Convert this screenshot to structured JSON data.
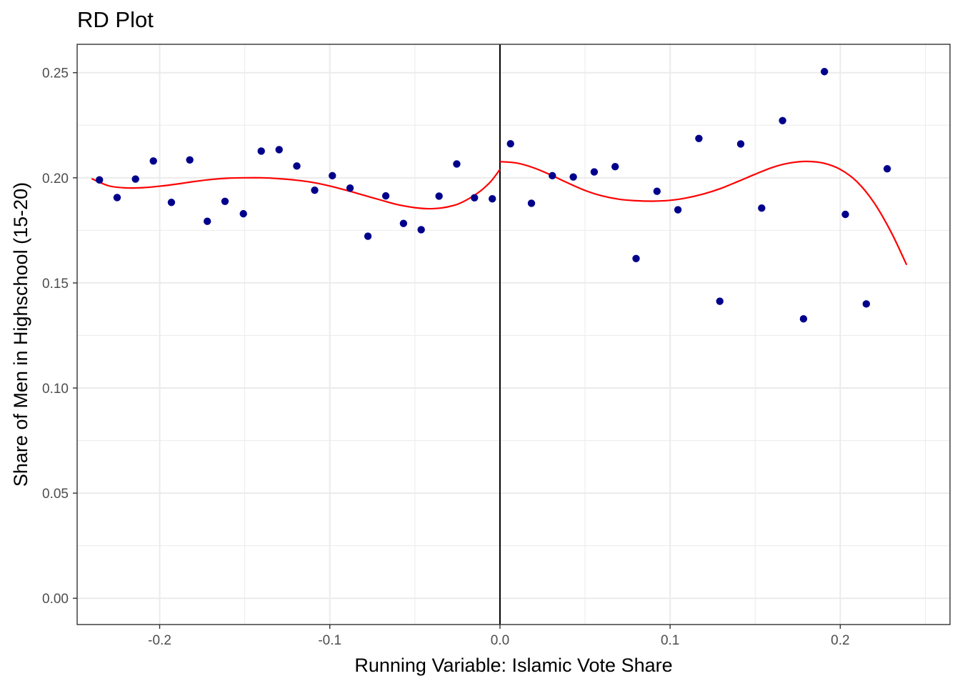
{
  "chart_data": {
    "type": "scatter",
    "title": "RD Plot",
    "xlabel": "Running Variable: Islamic Vote Share",
    "ylabel": "Share of Men in Highschool (15-20)",
    "xlim": [
      -0.2485,
      0.2645
    ],
    "ylim": [
      -0.0125,
      0.2635
    ],
    "xticks": [
      -0.2,
      -0.1,
      0.0,
      0.1,
      0.2
    ],
    "xtick_labels": [
      "-0.2",
      "-0.1",
      "0.0",
      "0.1",
      "0.2"
    ],
    "yticks": [
      0.0,
      0.05,
      0.1,
      0.15,
      0.2,
      0.25
    ],
    "ytick_labels": [
      "0.00",
      "0.05",
      "0.10",
      "0.15",
      "0.20",
      "0.25"
    ],
    "grid": true,
    "cutoff": 0.0,
    "colors": {
      "points": "#00008B",
      "fit": "#FF0000",
      "cutoff": "#000000",
      "grid": "#EBEBEB"
    },
    "points": [
      {
        "x": -0.2354,
        "y": 0.199
      },
      {
        "x": -0.225,
        "y": 0.1906
      },
      {
        "x": -0.2142,
        "y": 0.1994
      },
      {
        "x": -0.2037,
        "y": 0.208
      },
      {
        "x": -0.1931,
        "y": 0.1883
      },
      {
        "x": -0.1823,
        "y": 0.2085
      },
      {
        "x": -0.172,
        "y": 0.1793
      },
      {
        "x": -0.1616,
        "y": 0.1888
      },
      {
        "x": -0.1508,
        "y": 0.1829
      },
      {
        "x": -0.1403,
        "y": 0.2127
      },
      {
        "x": -0.1298,
        "y": 0.2134
      },
      {
        "x": -0.1194,
        "y": 0.2056
      },
      {
        "x": -0.1089,
        "y": 0.1941
      },
      {
        "x": -0.0985,
        "y": 0.201
      },
      {
        "x": -0.0881,
        "y": 0.1951
      },
      {
        "x": -0.0776,
        "y": 0.1722
      },
      {
        "x": -0.0671,
        "y": 0.1914
      },
      {
        "x": -0.0567,
        "y": 0.1783
      },
      {
        "x": -0.0463,
        "y": 0.1753
      },
      {
        "x": -0.0358,
        "y": 0.1913
      },
      {
        "x": -0.0254,
        "y": 0.2066
      },
      {
        "x": -0.015,
        "y": 0.1905
      },
      {
        "x": -0.0045,
        "y": 0.19
      },
      {
        "x": 0.0062,
        "y": 0.2162
      },
      {
        "x": 0.0185,
        "y": 0.1879
      },
      {
        "x": 0.0308,
        "y": 0.201
      },
      {
        "x": 0.0431,
        "y": 0.2004
      },
      {
        "x": 0.0554,
        "y": 0.2028
      },
      {
        "x": 0.0677,
        "y": 0.2053
      },
      {
        "x": 0.08,
        "y": 0.1616
      },
      {
        "x": 0.0923,
        "y": 0.1936
      },
      {
        "x": 0.1046,
        "y": 0.1848
      },
      {
        "x": 0.1169,
        "y": 0.2187
      },
      {
        "x": 0.1292,
        "y": 0.1413
      },
      {
        "x": 0.1415,
        "y": 0.2161
      },
      {
        "x": 0.1538,
        "y": 0.1856
      },
      {
        "x": 0.1661,
        "y": 0.2272
      },
      {
        "x": 0.1784,
        "y": 0.1329
      },
      {
        "x": 0.1907,
        "y": 0.2505
      },
      {
        "x": 0.203,
        "y": 0.1826
      },
      {
        "x": 0.2153,
        "y": 0.14
      },
      {
        "x": 0.2276,
        "y": 0.2043
      }
    ],
    "fit_left": [
      {
        "x": -0.24,
        "y": 0.1996
      },
      {
        "x": -0.23,
        "y": 0.1962
      },
      {
        "x": -0.22,
        "y": 0.1952
      },
      {
        "x": -0.21,
        "y": 0.1953
      },
      {
        "x": -0.2,
        "y": 0.196
      },
      {
        "x": -0.19,
        "y": 0.197
      },
      {
        "x": -0.18,
        "y": 0.1982
      },
      {
        "x": -0.17,
        "y": 0.1992
      },
      {
        "x": -0.16,
        "y": 0.1998
      },
      {
        "x": -0.15,
        "y": 0.2
      },
      {
        "x": -0.14,
        "y": 0.2
      },
      {
        "x": -0.13,
        "y": 0.1996
      },
      {
        "x": -0.12,
        "y": 0.1989
      },
      {
        "x": -0.11,
        "y": 0.1978
      },
      {
        "x": -0.1,
        "y": 0.1961
      },
      {
        "x": -0.09,
        "y": 0.194
      },
      {
        "x": -0.08,
        "y": 0.1917
      },
      {
        "x": -0.07,
        "y": 0.1894
      },
      {
        "x": -0.06,
        "y": 0.1872
      },
      {
        "x": -0.05,
        "y": 0.1858
      },
      {
        "x": -0.042,
        "y": 0.1853
      },
      {
        "x": -0.035,
        "y": 0.1856
      },
      {
        "x": -0.03,
        "y": 0.1863
      },
      {
        "x": -0.025,
        "y": 0.1874
      },
      {
        "x": -0.02,
        "y": 0.1893
      },
      {
        "x": -0.015,
        "y": 0.1917
      },
      {
        "x": -0.01,
        "y": 0.1947
      },
      {
        "x": -0.005,
        "y": 0.1986
      },
      {
        "x": 0.0,
        "y": 0.204
      }
    ],
    "fit_right": [
      {
        "x": 0.0,
        "y": 0.2077
      },
      {
        "x": 0.01,
        "y": 0.207
      },
      {
        "x": 0.02,
        "y": 0.2047
      },
      {
        "x": 0.03,
        "y": 0.2013
      },
      {
        "x": 0.04,
        "y": 0.1975
      },
      {
        "x": 0.05,
        "y": 0.194
      },
      {
        "x": 0.06,
        "y": 0.1914
      },
      {
        "x": 0.07,
        "y": 0.1898
      },
      {
        "x": 0.08,
        "y": 0.1891
      },
      {
        "x": 0.09,
        "y": 0.1889
      },
      {
        "x": 0.1,
        "y": 0.1893
      },
      {
        "x": 0.11,
        "y": 0.1905
      },
      {
        "x": 0.12,
        "y": 0.1924
      },
      {
        "x": 0.13,
        "y": 0.195
      },
      {
        "x": 0.14,
        "y": 0.1983
      },
      {
        "x": 0.15,
        "y": 0.2017
      },
      {
        "x": 0.16,
        "y": 0.2049
      },
      {
        "x": 0.17,
        "y": 0.207
      },
      {
        "x": 0.18,
        "y": 0.2078
      },
      {
        "x": 0.19,
        "y": 0.207
      },
      {
        "x": 0.2,
        "y": 0.204
      },
      {
        "x": 0.21,
        "y": 0.198
      },
      {
        "x": 0.22,
        "y": 0.188
      },
      {
        "x": 0.23,
        "y": 0.174
      },
      {
        "x": 0.239,
        "y": 0.1586
      }
    ]
  }
}
